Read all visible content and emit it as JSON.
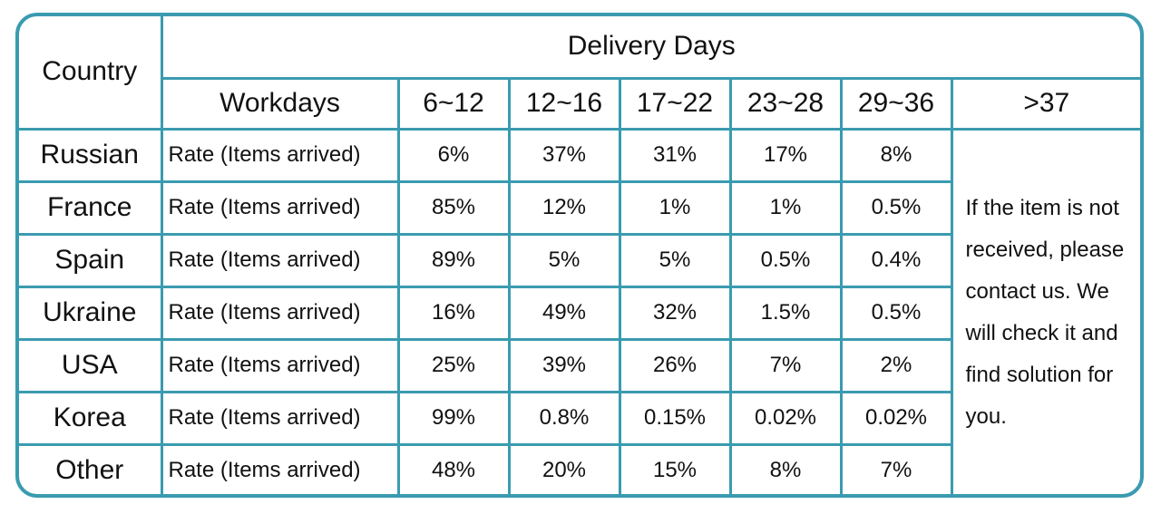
{
  "header": {
    "country_label": "Country",
    "delivery_days_label": "Delivery Days",
    "workdays_label": "Workdays",
    "ranges": [
      "6~12",
      "12~16",
      "17~22",
      "23~28",
      "29~36",
      ">37"
    ]
  },
  "rows": [
    {
      "country": "Russian",
      "label": "Rate (Items arrived)",
      "values": [
        "6%",
        "37%",
        "31%",
        "17%",
        "8%"
      ]
    },
    {
      "country": "France",
      "label": "Rate (Items arrived)",
      "values": [
        "85%",
        "12%",
        "1%",
        "1%",
        "0.5%"
      ]
    },
    {
      "country": "Spain",
      "label": "Rate (Items arrived)",
      "values": [
        "89%",
        "5%",
        "5%",
        "0.5%",
        "0.4%"
      ]
    },
    {
      "country": "Ukraine",
      "label": "Rate (Items arrived)",
      "values": [
        "16%",
        "49%",
        "32%",
        "1.5%",
        "0.5%"
      ]
    },
    {
      "country": "USA",
      "label": "Rate (Items arrived)",
      "values": [
        "25%",
        "39%",
        "26%",
        "7%",
        "2%"
      ]
    },
    {
      "country": "Korea",
      "label": "Rate (Items arrived)",
      "values": [
        "99%",
        "0.8%",
        "0.15%",
        "0.02%",
        "0.02%"
      ]
    },
    {
      "country": "Other",
      "label": "Rate (Items arrived)",
      "values": [
        "48%",
        "20%",
        "15%",
        "8%",
        "7%"
      ]
    }
  ],
  "note": "If the item is not received, please contact us. We will check it and find solution for you.",
  "colors": {
    "border": "#3a9bb0",
    "text": "#111111",
    "background": "#ffffff"
  }
}
